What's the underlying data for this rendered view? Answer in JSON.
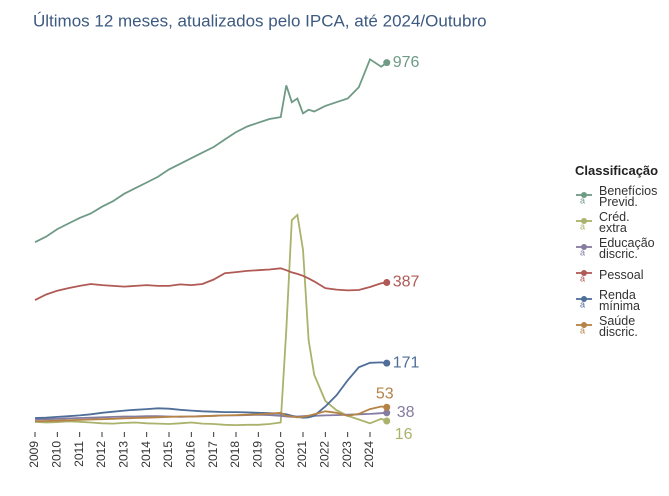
{
  "chart_data": {
    "type": "line",
    "title": "Últimos 12 meses, atualizados pelo IPCA, até 2024/Outubro",
    "legend_title": "Classificação",
    "legend": "right",
    "x": [
      2009,
      2009.5,
      2010,
      2010.5,
      2011,
      2011.5,
      2012,
      2012.5,
      2013,
      2013.5,
      2014,
      2014.5,
      2015,
      2015.5,
      2016,
      2016.5,
      2017,
      2017.5,
      2018,
      2018.5,
      2019,
      2019.5,
      2020,
      2020.25,
      2020.5,
      2020.75,
      2021,
      2021.25,
      2021.5,
      2022,
      2022.5,
      2023,
      2023.5,
      2024,
      2024.5,
      2024.75
    ],
    "xlim": [
      2008.9,
      2025.3
    ],
    "xticks": [
      2009,
      2010,
      2011,
      2012,
      2013,
      2014,
      2015,
      2016,
      2017,
      2018,
      2019,
      2020,
      2021,
      2022,
      2023,
      2024
    ],
    "ylim": [
      0,
      1050
    ],
    "series": [
      {
        "name": "Benefícios Previd.",
        "color": "#6f9a85",
        "values": [
          495,
          510,
          530,
          545,
          560,
          572,
          590,
          605,
          625,
          640,
          655,
          670,
          690,
          705,
          720,
          735,
          750,
          770,
          790,
          805,
          815,
          825,
          830,
          915,
          870,
          880,
          840,
          850,
          845,
          860,
          870,
          880,
          910,
          985,
          965,
          976
        ]
      },
      {
        "name": "Créd. extra",
        "color": "#aab26b",
        "values": [
          14,
          12,
          13,
          15,
          14,
          12,
          10,
          9,
          11,
          12,
          10,
          9,
          8,
          10,
          12,
          9,
          8,
          6,
          5,
          6,
          6,
          8,
          12,
          260,
          554,
          568,
          475,
          233,
          140,
          70,
          45,
          30,
          20,
          10,
          22,
          16
        ]
      },
      {
        "name": "Educação discric.",
        "color": "#857ca0",
        "values": [
          20,
          21,
          22,
          23,
          24,
          25,
          26,
          27,
          28,
          28,
          29,
          29,
          28,
          27,
          28,
          29,
          30,
          31,
          31,
          32,
          33,
          32,
          30,
          28,
          27,
          28,
          29,
          30,
          30,
          31,
          32,
          33,
          34,
          35,
          37,
          38
        ]
      },
      {
        "name": "Pessoal",
        "color": "#b05a55",
        "values": [
          340,
          355,
          365,
          372,
          378,
          383,
          380,
          378,
          376,
          378,
          380,
          378,
          378,
          382,
          380,
          383,
          395,
          412,
          415,
          418,
          420,
          422,
          425,
          420,
          414,
          410,
          405,
          398,
          390,
          372,
          368,
          366,
          367,
          375,
          385,
          387
        ]
      },
      {
        "name": "Renda mínima",
        "color": "#4f6e98",
        "values": [
          24,
          25,
          27,
          29,
          31,
          34,
          38,
          41,
          44,
          46,
          48,
          50,
          49,
          46,
          44,
          42,
          41,
          40,
          40,
          39,
          38,
          37,
          36,
          34,
          30,
          27,
          25,
          26,
          30,
          55,
          85,
          125,
          160,
          172,
          173,
          171
        ]
      },
      {
        "name": "Saúde discric.",
        "color": "#b58345",
        "values": [
          15,
          16,
          17,
          18,
          19,
          20,
          21,
          22,
          23,
          24,
          25,
          26,
          27,
          28,
          28,
          29,
          30,
          31,
          32,
          33,
          34,
          36,
          38,
          30,
          28,
          26,
          27,
          30,
          34,
          42,
          38,
          30,
          35,
          48,
          55,
          53
        ]
      }
    ]
  }
}
